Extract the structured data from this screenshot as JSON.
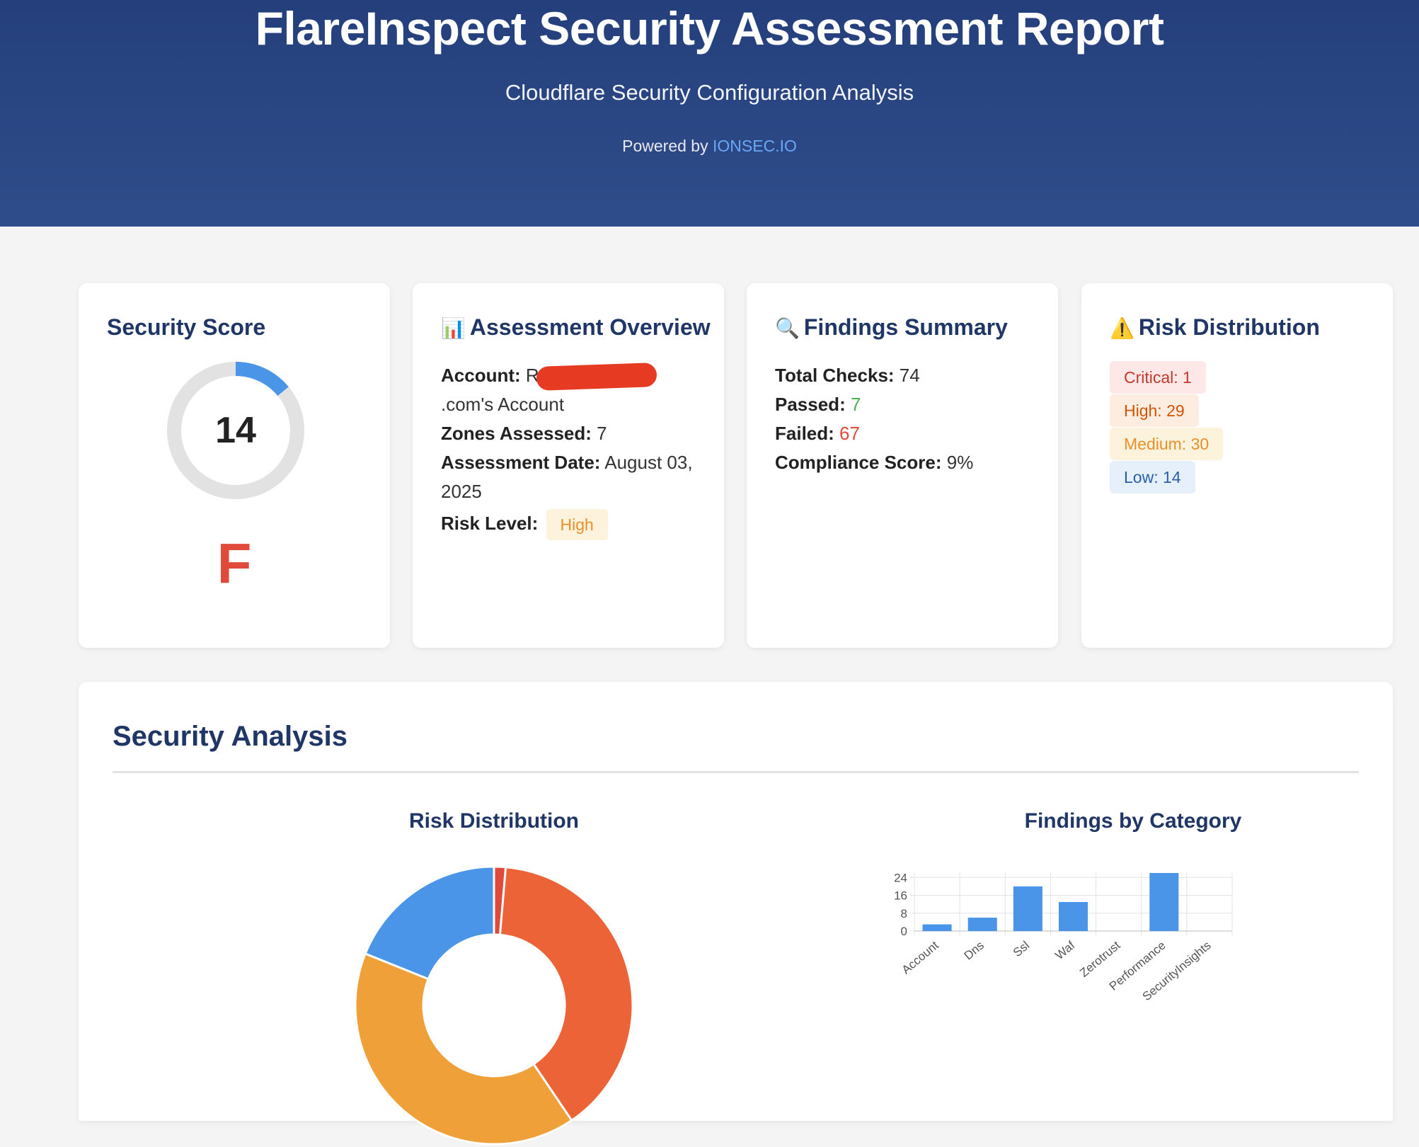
{
  "header": {
    "title": "FlareInspect Security Assessment Report",
    "subtitle": "Cloudflare Security Configuration Analysis",
    "powered_prefix": "Powered by ",
    "powered_link": "IONSEC.IO"
  },
  "score_card": {
    "title": "Security Score",
    "score": "14",
    "score_value": 14,
    "score_max": 100,
    "grade": "F"
  },
  "overview": {
    "icon": "📊",
    "title": "Assessment Overview",
    "account_label": "Account:",
    "account_prefix": "R",
    "account_suffix": ".com's Account",
    "zones_label": "Zones Assessed:",
    "zones_value": "7",
    "date_label": "Assessment Date:",
    "date_value": "August 03, 2025",
    "risk_label": "Risk Level:",
    "risk_value": "High"
  },
  "findings": {
    "icon": "🔍",
    "title": "Findings Summary",
    "total_label": "Total Checks:",
    "total_value": "74",
    "passed_label": "Passed:",
    "passed_value": "7",
    "failed_label": "Failed:",
    "failed_value": "67",
    "compliance_label": "Compliance Score:",
    "compliance_value": "9%"
  },
  "risk": {
    "icon": "⚠️",
    "title": "Risk Distribution",
    "items": [
      {
        "label": "Critical: 1"
      },
      {
        "label": "High: 29"
      },
      {
        "label": "Medium: 30"
      },
      {
        "label": "Low: 14"
      }
    ]
  },
  "analysis": {
    "title": "Security Analysis"
  },
  "chart_data": [
    {
      "type": "pie",
      "title": "Risk Distribution",
      "donut": true,
      "categories": [
        "Critical",
        "High",
        "Medium",
        "Low"
      ],
      "values": [
        1,
        29,
        30,
        14
      ],
      "colors": [
        "#e04a3a",
        "#ec6337",
        "#f0a038",
        "#4a95e8"
      ]
    },
    {
      "type": "bar",
      "title": "Findings by Category",
      "categories": [
        "Account",
        "Dns",
        "Ssl",
        "Waf",
        "Zerotrust",
        "Performance",
        "SecurityInsights"
      ],
      "values": [
        3,
        6,
        20,
        13,
        0,
        26,
        0
      ],
      "yticks": [
        "0",
        "8",
        "16",
        "24"
      ],
      "ylim": [
        0,
        26
      ],
      "grid": true,
      "color": "#4a95e8"
    }
  ]
}
